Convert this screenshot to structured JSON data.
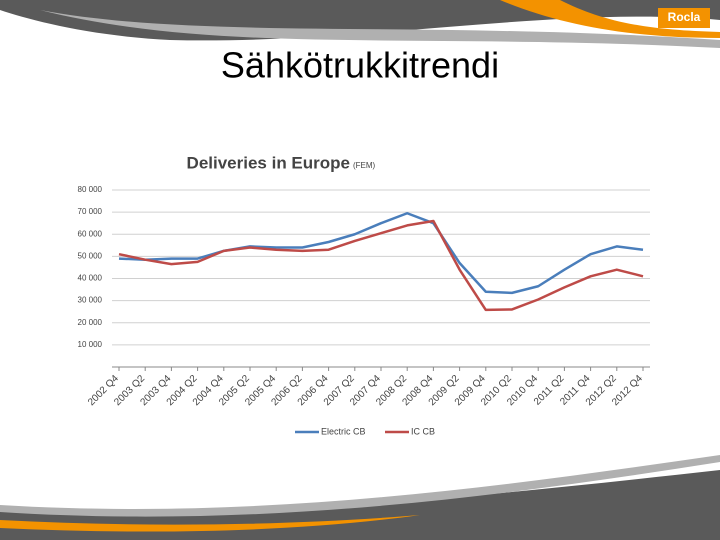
{
  "slide": {
    "title": "Sähkötrukkitrendi",
    "logo": "Rocla"
  },
  "chart_data": {
    "type": "line",
    "title": "Deliveries in Europe",
    "subtitle": "(FEM)",
    "categories": [
      "2002 Q4",
      "2003 Q2",
      "2003 Q4",
      "2004 Q2",
      "2004 Q4",
      "2005 Q2",
      "2005 Q4",
      "2006 Q2",
      "2006 Q4",
      "2007 Q2",
      "2007 Q4",
      "2008 Q2",
      "2008 Q4",
      "2009 Q2",
      "2009 Q4",
      "2010 Q2",
      "2010 Q4",
      "2011 Q2",
      "2011 Q4",
      "2012 Q2",
      "2012 Q4"
    ],
    "series": [
      {
        "name": "Electric CB",
        "color": "#4a7ebb",
        "values": [
          49000,
          48500,
          49000,
          49000,
          52500,
          54500,
          54000,
          54000,
          56500,
          60000,
          65000,
          69500,
          65000,
          47000,
          34000,
          33500,
          36500,
          44000,
          51000,
          54500,
          53000
        ]
      },
      {
        "name": "IC CB",
        "color": "#be4b48",
        "values": [
          51000,
          48500,
          46500,
          47500,
          52500,
          54000,
          53000,
          52500,
          53000,
          57000,
          60500,
          64000,
          66000,
          44000,
          25800,
          26000,
          30500,
          36000,
          41000,
          44000,
          41000
        ]
      }
    ],
    "ylim": [
      0,
      80000
    ],
    "yticks": [
      {
        "value": 10000,
        "label": "10 000"
      },
      {
        "value": 20000,
        "label": "20 000"
      },
      {
        "value": 30000,
        "label": "30 000"
      },
      {
        "value": 40000,
        "label": "40 000"
      },
      {
        "value": 50000,
        "label": "50 000"
      },
      {
        "value": 60000,
        "label": "60 000"
      },
      {
        "value": 70000,
        "label": "70 000"
      },
      {
        "value": 80000,
        "label": "80 000"
      }
    ],
    "grid": true,
    "legend": "bottom"
  }
}
